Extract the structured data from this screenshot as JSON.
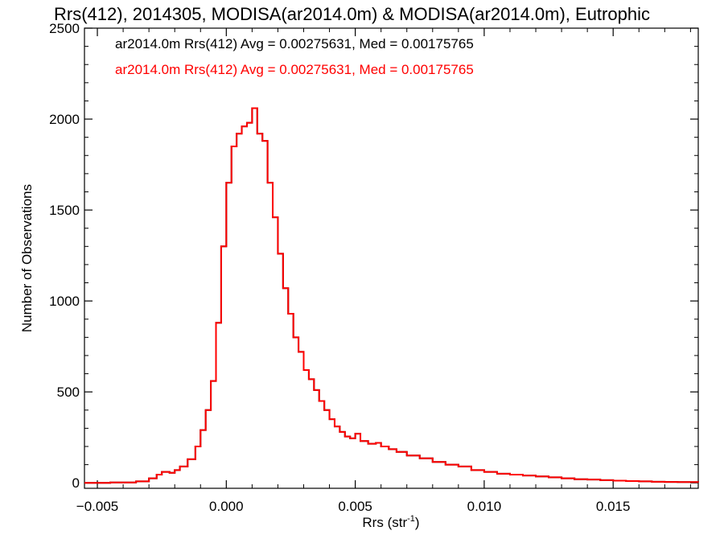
{
  "chart_data": {
    "type": "line",
    "title": "Rrs(412), 2014305, MODISA(ar2014.0m) & MODISA(ar2014.0m), Eutrophic",
    "xlabel": "Rrs (str",
    "xlabel_sup": "-1",
    "xlabel_close": ")",
    "ylabel": "Number of Observations",
    "xlim": [
      -0.0055,
      0.0183
    ],
    "ylim": [
      -30,
      2500
    ],
    "x_ticks": [
      -0.005,
      0.0,
      0.005,
      0.01,
      0.015
    ],
    "x_tick_labels": [
      "−0.005",
      "0.000",
      "0.005",
      "0.010",
      "0.015"
    ],
    "y_ticks": [
      0,
      500,
      1000,
      1500,
      2000,
      2500
    ],
    "y_tick_labels": [
      "0",
      "500",
      "1000",
      "1500",
      "2000",
      "2500"
    ],
    "legend": [
      {
        "text": "ar2014.0m Rrs(412) Avg = 0.00275631, Med = 0.00175765",
        "color": "#000000"
      },
      {
        "text": "ar2014.0m Rrs(412) Avg = 0.00275631, Med = 0.00175765",
        "color": "#ff0000"
      }
    ],
    "series": [
      {
        "color": "#000000",
        "x": [
          -0.0055,
          -0.0045,
          -0.0035,
          -0.003,
          -0.0027,
          -0.0025,
          -0.0022,
          -0.002,
          -0.0018,
          -0.0015,
          -0.0012,
          -0.001,
          -0.0008,
          -0.0006,
          -0.0004,
          -0.0002,
          0.0,
          0.0002,
          0.0004,
          0.0006,
          0.0008,
          0.001,
          0.0012,
          0.0014,
          0.0016,
          0.0018,
          0.002,
          0.0022,
          0.0024,
          0.0026,
          0.0028,
          0.003,
          0.0032,
          0.0034,
          0.0036,
          0.0038,
          0.004,
          0.0042,
          0.0044,
          0.0046,
          0.0048,
          0.005,
          0.0052,
          0.0055,
          0.0058,
          0.006,
          0.0063,
          0.0066,
          0.007,
          0.0075,
          0.008,
          0.0085,
          0.009,
          0.0095,
          0.01,
          0.0105,
          0.011,
          0.0115,
          0.012,
          0.0125,
          0.013,
          0.0135,
          0.014,
          0.0145,
          0.015,
          0.0155,
          0.016,
          0.0165,
          0.017,
          0.0175,
          0.0183
        ],
        "y": [
          0,
          2,
          8,
          25,
          45,
          60,
          55,
          70,
          90,
          130,
          200,
          290,
          400,
          560,
          880,
          1300,
          1650,
          1850,
          1920,
          1960,
          1980,
          2060,
          1920,
          1880,
          1650,
          1460,
          1260,
          1070,
          930,
          800,
          720,
          620,
          570,
          510,
          450,
          400,
          350,
          310,
          280,
          255,
          245,
          270,
          230,
          215,
          220,
          200,
          185,
          170,
          150,
          135,
          115,
          100,
          90,
          70,
          60,
          50,
          45,
          40,
          35,
          30,
          25,
          20,
          18,
          15,
          12,
          10,
          8,
          6,
          5,
          4,
          3
        ]
      },
      {
        "color": "#ff0000",
        "x": [
          -0.0055,
          -0.0045,
          -0.0035,
          -0.003,
          -0.0027,
          -0.0025,
          -0.0022,
          -0.002,
          -0.0018,
          -0.0015,
          -0.0012,
          -0.001,
          -0.0008,
          -0.0006,
          -0.0004,
          -0.0002,
          0.0,
          0.0002,
          0.0004,
          0.0006,
          0.0008,
          0.001,
          0.0012,
          0.0014,
          0.0016,
          0.0018,
          0.002,
          0.0022,
          0.0024,
          0.0026,
          0.0028,
          0.003,
          0.0032,
          0.0034,
          0.0036,
          0.0038,
          0.004,
          0.0042,
          0.0044,
          0.0046,
          0.0048,
          0.005,
          0.0052,
          0.0055,
          0.0058,
          0.006,
          0.0063,
          0.0066,
          0.007,
          0.0075,
          0.008,
          0.0085,
          0.009,
          0.0095,
          0.01,
          0.0105,
          0.011,
          0.0115,
          0.012,
          0.0125,
          0.013,
          0.0135,
          0.014,
          0.0145,
          0.015,
          0.0155,
          0.016,
          0.0165,
          0.017,
          0.0175,
          0.0183
        ],
        "y": [
          0,
          2,
          8,
          25,
          45,
          60,
          55,
          70,
          90,
          130,
          200,
          290,
          400,
          560,
          880,
          1300,
          1650,
          1850,
          1920,
          1960,
          1980,
          2060,
          1920,
          1880,
          1650,
          1460,
          1260,
          1070,
          930,
          800,
          720,
          620,
          570,
          510,
          450,
          400,
          350,
          310,
          280,
          255,
          245,
          270,
          230,
          215,
          220,
          200,
          185,
          170,
          150,
          135,
          115,
          100,
          90,
          70,
          60,
          50,
          45,
          40,
          35,
          30,
          25,
          20,
          18,
          15,
          12,
          10,
          8,
          6,
          5,
          4,
          3
        ]
      }
    ]
  }
}
